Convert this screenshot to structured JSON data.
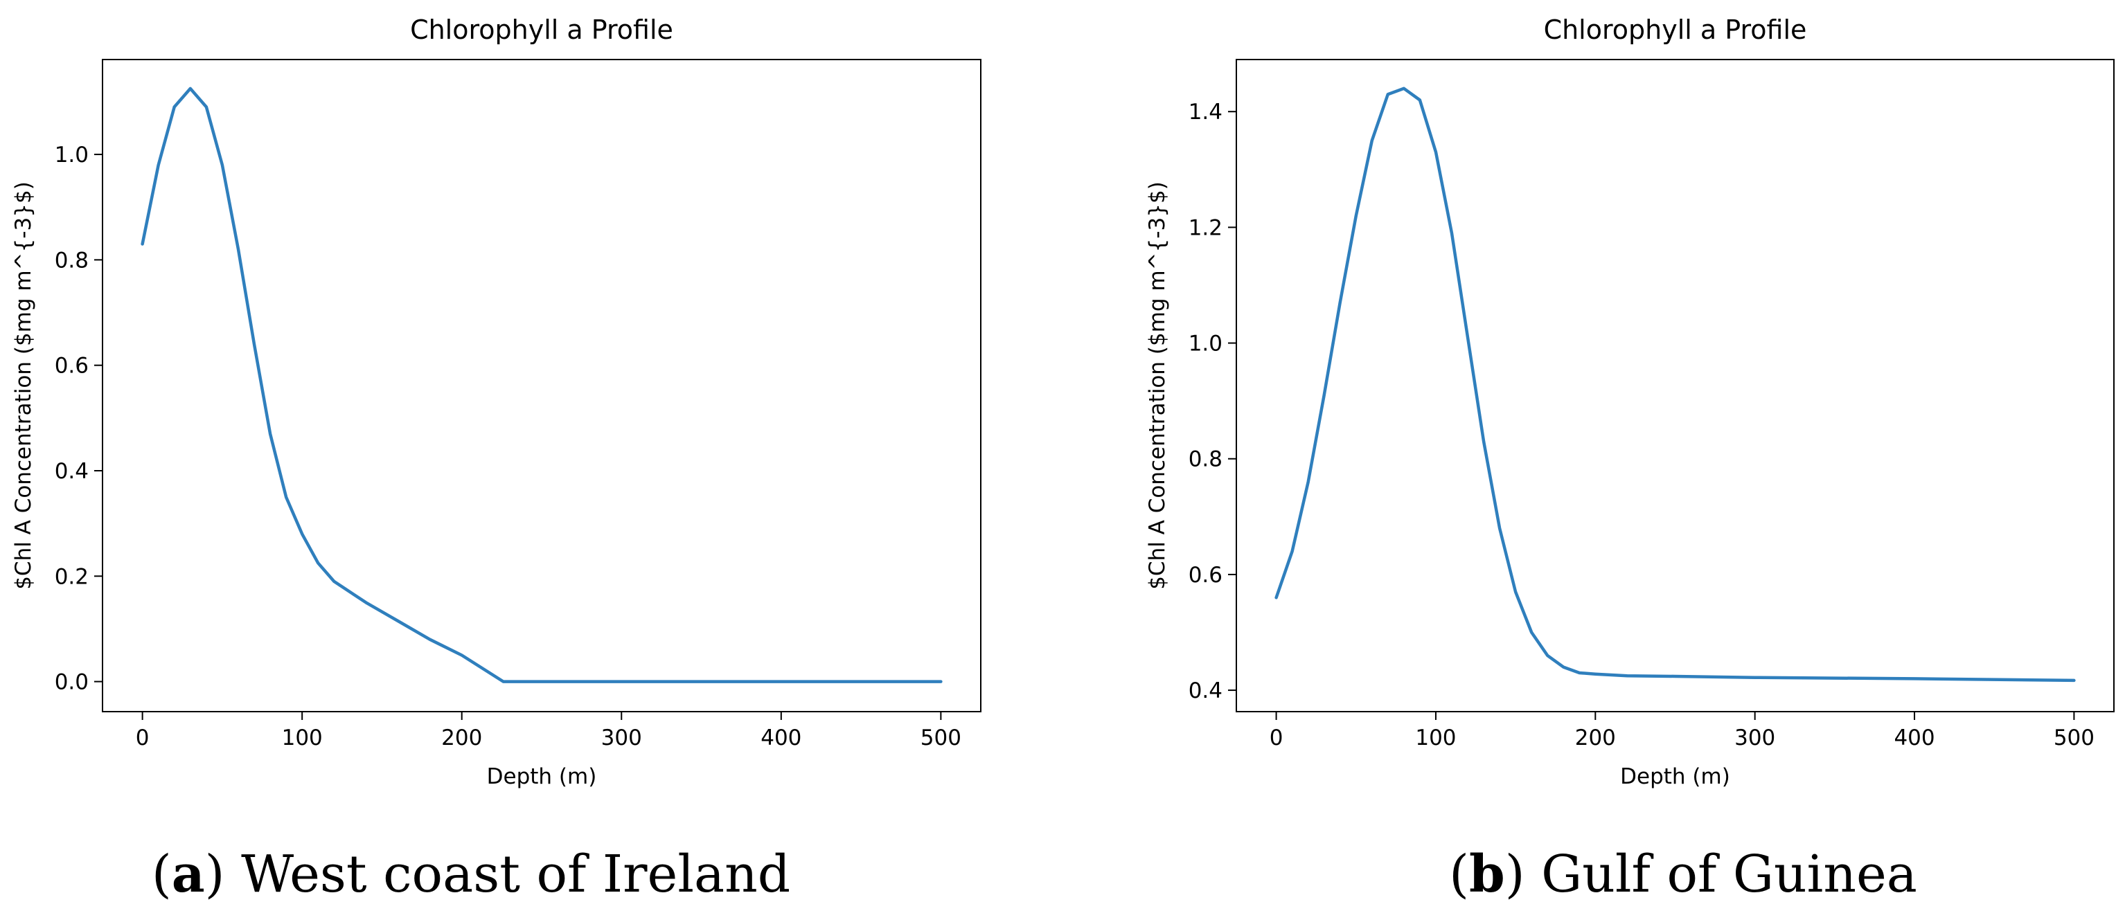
{
  "chart_data": [
    {
      "type": "line",
      "title": "Chlorophyll a Profile",
      "xlabel": "Depth (m)",
      "ylabel": "$Chl A Concentration ($mg m^{-3}$)",
      "xlim": [
        -25,
        525
      ],
      "ylim": [
        -0.057,
        1.18
      ],
      "xticks": [
        0,
        100,
        200,
        300,
        400,
        500
      ],
      "xtick_labels": [
        "0",
        "100",
        "200",
        "300",
        "400",
        "500"
      ],
      "yticks": [
        0.0,
        0.2,
        0.4,
        0.6,
        0.8,
        1.0
      ],
      "ytick_labels": [
        "0.0",
        "0.2",
        "0.4",
        "0.6",
        "0.8",
        "1.0"
      ],
      "grid": false,
      "color": "#2f7fbd",
      "series": [
        {
          "x": [
            0,
            10,
            20,
            30,
            40,
            50,
            60,
            70,
            80,
            90,
            100,
            110,
            120,
            140,
            160,
            180,
            200,
            226,
            250,
            300,
            350,
            400,
            450,
            500
          ],
          "y": [
            0.83,
            0.98,
            1.09,
            1.125,
            1.09,
            0.98,
            0.82,
            0.64,
            0.47,
            0.35,
            0.28,
            0.225,
            0.19,
            0.15,
            0.115,
            0.08,
            0.05,
            0.0,
            0.0,
            0.0,
            0.0,
            0.0,
            0.0,
            0.0
          ]
        }
      ],
      "caption_letter": "a",
      "caption_text": "West coast of Ireland"
    },
    {
      "type": "line",
      "title": "Chlorophyll a Profile",
      "xlabel": "Depth (m)",
      "ylabel": "$Chl A Concentration ($mg m^{-3}$)",
      "xlim": [
        -25,
        525
      ],
      "ylim": [
        0.363,
        1.49
      ],
      "xticks": [
        0,
        100,
        200,
        300,
        400,
        500
      ],
      "xtick_labels": [
        "0",
        "100",
        "200",
        "300",
        "400",
        "500"
      ],
      "yticks": [
        0.4,
        0.6,
        0.8,
        1.0,
        1.2,
        1.4
      ],
      "ytick_labels": [
        "0.4",
        "0.6",
        "0.8",
        "1.0",
        "1.2",
        "1.4"
      ],
      "grid": false,
      "color": "#2f7fbd",
      "series": [
        {
          "x": [
            0,
            10,
            20,
            30,
            40,
            50,
            60,
            70,
            80,
            90,
            100,
            110,
            120,
            130,
            140,
            150,
            160,
            170,
            180,
            190,
            200,
            220,
            250,
            300,
            400,
            500
          ],
          "y": [
            0.56,
            0.64,
            0.76,
            0.91,
            1.07,
            1.22,
            1.35,
            1.43,
            1.44,
            1.42,
            1.33,
            1.19,
            1.01,
            0.83,
            0.68,
            0.57,
            0.5,
            0.46,
            0.44,
            0.43,
            0.428,
            0.425,
            0.424,
            0.422,
            0.42,
            0.417
          ]
        }
      ],
      "caption_letter": "b",
      "caption_text": "Gulf of Guinea"
    }
  ]
}
